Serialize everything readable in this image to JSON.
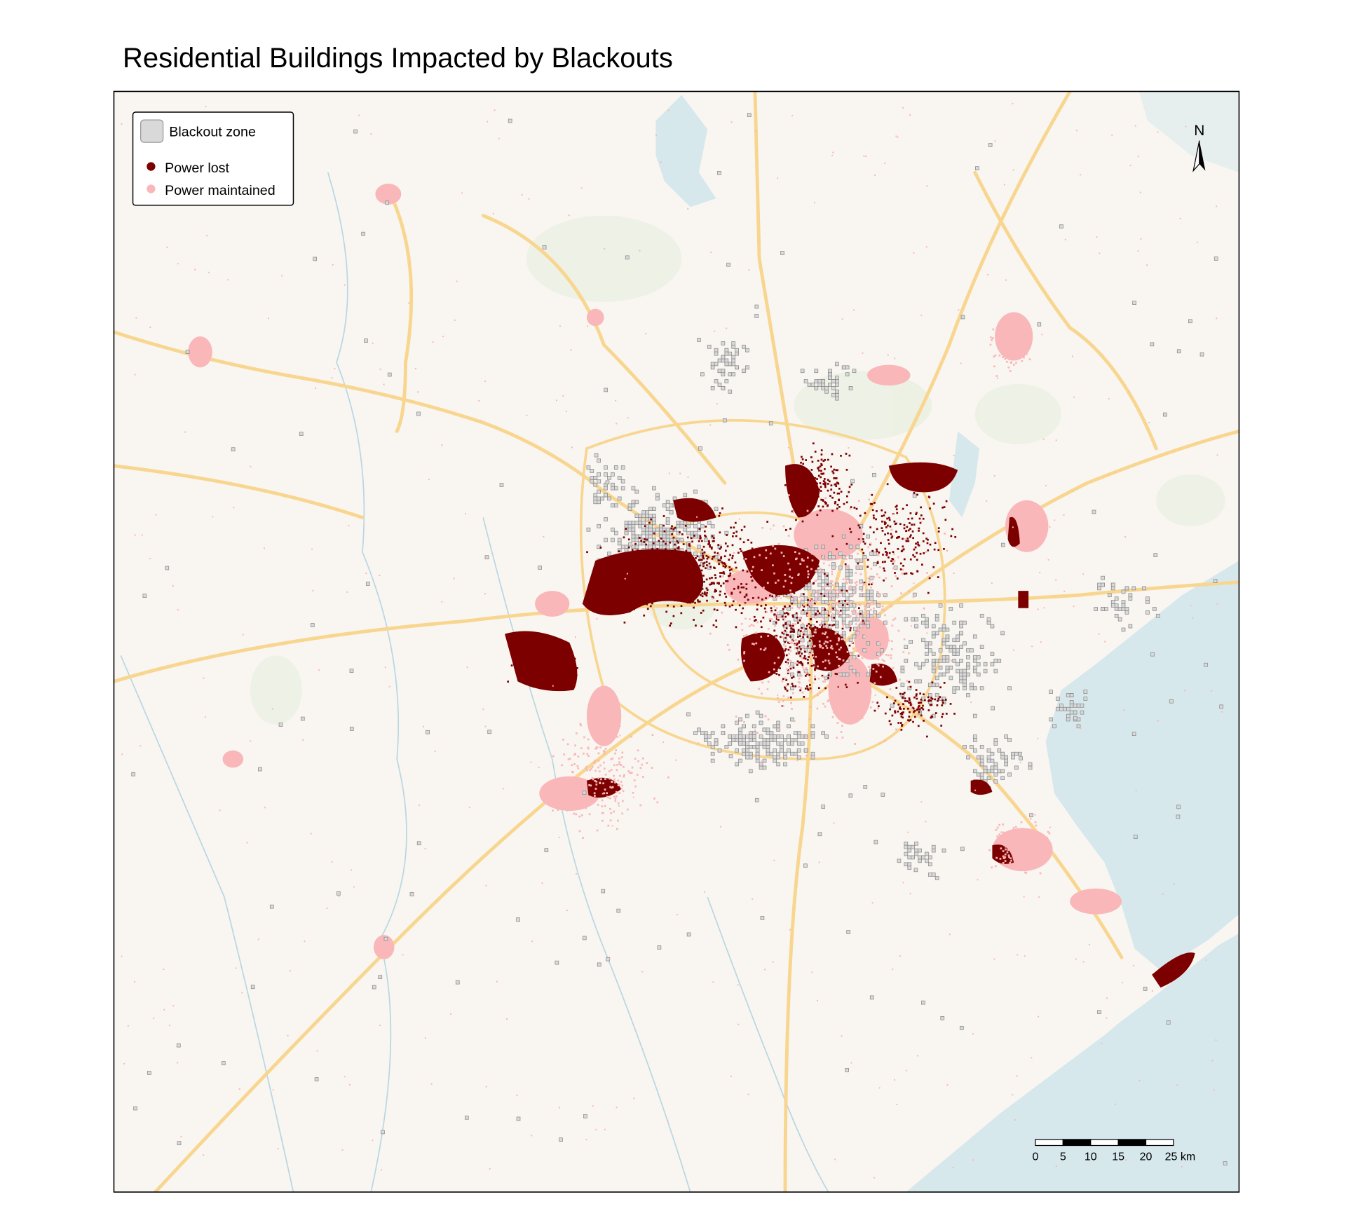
{
  "title": "Residential Buildings Impacted by Blackouts",
  "legend": {
    "items": [
      {
        "label": "Blackout zone"
      },
      {
        "label": "Power lost"
      },
      {
        "label": "Power maintained"
      }
    ]
  },
  "north_arrow": "N",
  "scale_bar": {
    "labels": [
      "0",
      "5",
      "10",
      "15",
      "20",
      "25 km"
    ]
  }
}
